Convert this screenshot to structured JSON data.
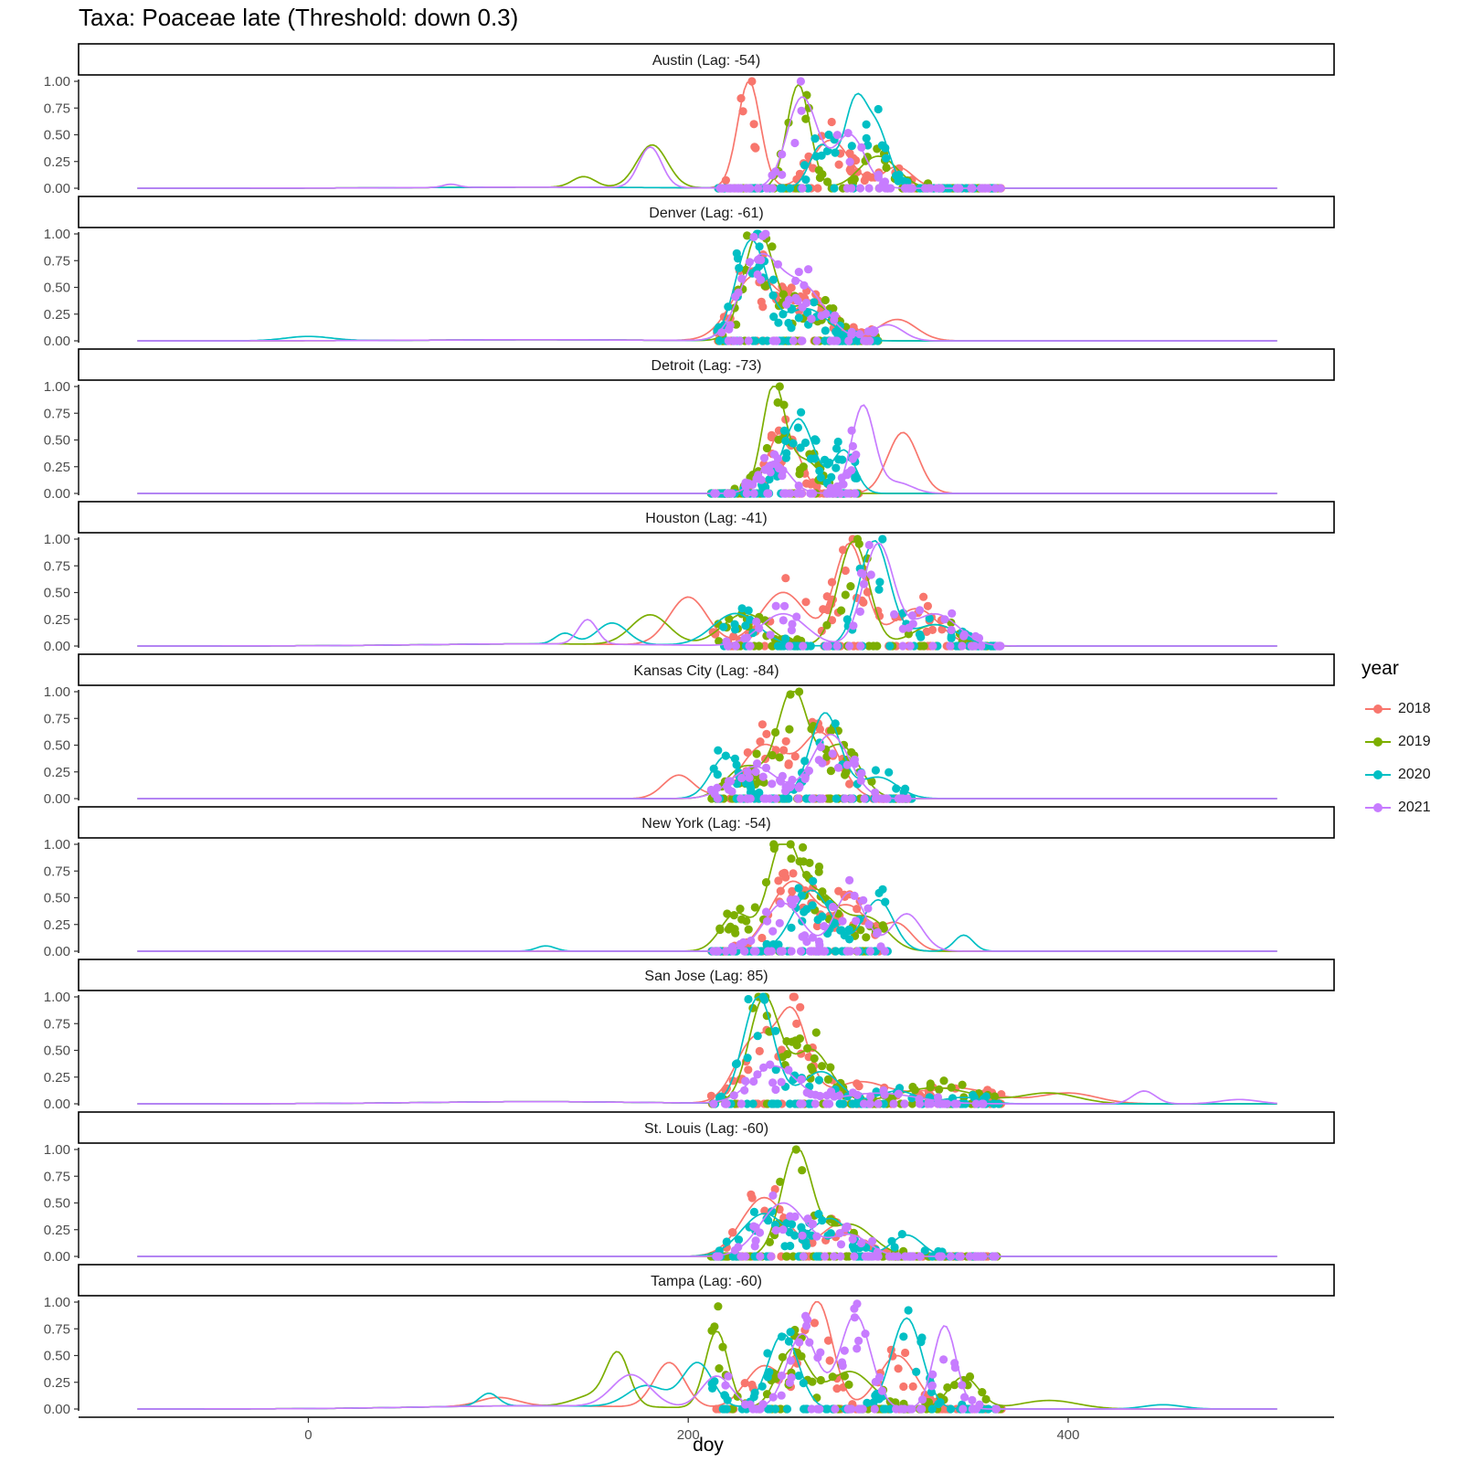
{
  "title": "Taxa: Poaceae late (Threshold: down 0.3)",
  "legend": {
    "title": "year",
    "items": [
      {
        "label": "2018",
        "color": "#F8766D"
      },
      {
        "label": "2019",
        "color": "#7CAE00"
      },
      {
        "label": "2020",
        "color": "#00BFC4"
      },
      {
        "label": "2021",
        "color": "#C77CFF"
      }
    ]
  },
  "chart_data": {
    "type": "line",
    "title": "Taxa: Poaceae late (Threshold: down 0.3)",
    "xlabel": "doy",
    "ylabel": "",
    "xlim": [
      -120,
      540
    ],
    "ylim": [
      0,
      1
    ],
    "x_ticks": [
      "0",
      "200",
      "400"
    ],
    "x_tick_values": [
      0,
      200,
      400
    ],
    "y_ticks": [
      "0.00",
      "0.25",
      "0.50",
      "0.75",
      "1.00"
    ],
    "y_tick_values": [
      0,
      0.25,
      0.5,
      0.75,
      1
    ],
    "facets": [
      {
        "title": "Austin (Lag: -54)",
        "point_range": [
          215,
          365
        ],
        "tail": 0.01,
        "series": [
          {
            "name": "2018",
            "peaks": [
              [
                232,
                1.0,
                6
              ],
              [
                275,
                0.45,
                10
              ],
              [
                310,
                0.2,
                8
              ]
            ]
          },
          {
            "name": "2019",
            "peaks": [
              [
                145,
                0.1,
                6
              ],
              [
                181,
                0.4,
                8
              ],
              [
                258,
                0.97,
                6
              ],
              [
                300,
                0.3,
                10
              ]
            ]
          },
          {
            "name": "2020",
            "peaks": [
              [
                270,
                0.4,
                6
              ],
              [
                288,
                0.8,
                6
              ],
              [
                300,
                0.5,
                6
              ]
            ]
          },
          {
            "name": "2021",
            "peaks": [
              [
                75,
                0.03,
                4
              ],
              [
                180,
                0.38,
                6
              ],
              [
                260,
                0.85,
                8
              ],
              [
                285,
                0.5,
                8
              ]
            ]
          }
        ]
      },
      {
        "title": "Denver (Lag: -61)",
        "point_range": [
          215,
          300
        ],
        "tail": 0.01,
        "series": [
          {
            "name": "2018",
            "peaks": [
              [
                235,
                0.6,
                12
              ],
              [
                265,
                0.35,
                12
              ],
              [
                310,
                0.2,
                10
              ]
            ]
          },
          {
            "name": "2019",
            "peaks": [
              [
                237,
                1.0,
                8
              ],
              [
                265,
                0.35,
                12
              ]
            ]
          },
          {
            "name": "2020",
            "peaks": [
              [
                0,
                0.04,
                12
              ],
              [
                233,
                0.93,
                8
              ],
              [
                262,
                0.3,
                12
              ]
            ]
          },
          {
            "name": "2021",
            "peaks": [
              [
                237,
                0.72,
                10
              ],
              [
                260,
                0.5,
                12
              ],
              [
                305,
                0.15,
                8
              ]
            ]
          }
        ]
      },
      {
        "title": "Detroit (Lag: -73)",
        "point_range": [
          212,
          290
        ],
        "tail": 0.0,
        "series": [
          {
            "name": "2018",
            "peaks": [
              [
                250,
                0.6,
                8
              ],
              [
                313,
                0.57,
                8
              ]
            ]
          },
          {
            "name": "2019",
            "peaks": [
              [
                245,
                1.0,
                6
              ],
              [
                262,
                0.3,
                8
              ]
            ]
          },
          {
            "name": "2020",
            "peaks": [
              [
                258,
                0.7,
                8
              ],
              [
                282,
                0.4,
                6
              ]
            ]
          },
          {
            "name": "2021",
            "peaks": [
              [
                245,
                0.3,
                8
              ],
              [
                292,
                0.82,
                6
              ],
              [
                310,
                0.1,
                8
              ]
            ]
          }
        ]
      },
      {
        "title": "Houston (Lag: -41)",
        "point_range": [
          212,
          365
        ],
        "tail": 0.02,
        "series": [
          {
            "name": "2018",
            "peaks": [
              [
                200,
                0.45,
                10
              ],
              [
                250,
                0.5,
                12
              ],
              [
                285,
                0.95,
                8
              ],
              [
                320,
                0.35,
                12
              ]
            ]
          },
          {
            "name": "2019",
            "peaks": [
              [
                180,
                0.28,
                10
              ],
              [
                230,
                0.3,
                12
              ],
              [
                287,
                0.98,
                8
              ],
              [
                330,
                0.2,
                12
              ]
            ]
          },
          {
            "name": "2020",
            "peaks": [
              [
                135,
                0.1,
                5
              ],
              [
                160,
                0.2,
                8
              ],
              [
                225,
                0.3,
                12
              ],
              [
                298,
                0.98,
                8
              ],
              [
                330,
                0.2,
                12
              ]
            ]
          },
          {
            "name": "2021",
            "peaks": [
              [
                147,
                0.23,
                5
              ],
              [
                250,
                0.3,
                12
              ],
              [
                300,
                0.95,
                8
              ],
              [
                330,
                0.3,
                12
              ]
            ]
          }
        ]
      },
      {
        "title": "Kansas City (Lag: -84)",
        "point_range": [
          212,
          318
        ],
        "tail": 0.0,
        "series": [
          {
            "name": "2018",
            "peaks": [
              [
                195,
                0.22,
                8
              ],
              [
                240,
                0.5,
                12
              ],
              [
                270,
                0.6,
                10
              ]
            ]
          },
          {
            "name": "2019",
            "peaks": [
              [
                230,
                0.3,
                10
              ],
              [
                255,
                1.0,
                8
              ],
              [
                280,
                0.5,
                10
              ]
            ]
          },
          {
            "name": "2020",
            "peaks": [
              [
                220,
                0.4,
                8
              ],
              [
                272,
                0.8,
                8
              ],
              [
                300,
                0.2,
                10
              ]
            ]
          },
          {
            "name": "2021",
            "peaks": [
              [
                235,
                0.3,
                12
              ],
              [
                275,
                0.6,
                10
              ]
            ]
          }
        ]
      },
      {
        "title": "New York (Lag: -54)",
        "point_range": [
          212,
          305
        ],
        "tail": 0.0,
        "series": [
          {
            "name": "2018",
            "peaks": [
              [
                255,
                0.65,
                12
              ],
              [
                285,
                0.4,
                10
              ],
              [
                310,
                0.25,
                8
              ]
            ]
          },
          {
            "name": "2019",
            "peaks": [
              [
                225,
                0.35,
                8
              ],
              [
                250,
                1.0,
                8
              ],
              [
                270,
                0.5,
                10
              ],
              [
                295,
                0.3,
                10
              ]
            ]
          },
          {
            "name": "2020",
            "peaks": [
              [
                125,
                0.05,
                5
              ],
              [
                265,
                0.57,
                10
              ],
              [
                300,
                0.48,
                8
              ],
              [
                345,
                0.15,
                5
              ]
            ]
          },
          {
            "name": "2021",
            "peaks": [
              [
                250,
                0.45,
                10
              ],
              [
                285,
                0.55,
                8
              ],
              [
                315,
                0.35,
                8
              ]
            ]
          }
        ]
      },
      {
        "title": "San Jose (Lag: 85)",
        "point_range": [
          212,
          365
        ],
        "tail": 0.02,
        "series": [
          {
            "name": "2018",
            "peaks": [
              [
                235,
                0.6,
                10
              ],
              [
                255,
                0.8,
                8
              ],
              [
                290,
                0.2,
                15
              ],
              [
                340,
                0.15,
                20
              ],
              [
                400,
                0.1,
                15
              ]
            ]
          },
          {
            "name": "2019",
            "peaks": [
              [
                240,
                0.98,
                8
              ],
              [
                265,
                0.5,
                10
              ],
              [
                330,
                0.15,
                20
              ],
              [
                390,
                0.1,
                15
              ]
            ]
          },
          {
            "name": "2020",
            "peaks": [
              [
                237,
                1.0,
                8
              ],
              [
                270,
                0.3,
                10
              ],
              [
                310,
                0.12,
                10
              ],
              [
                345,
                0.06,
                10
              ]
            ]
          },
          {
            "name": "2021",
            "peaks": [
              [
                245,
                0.35,
                12
              ],
              [
                300,
                0.1,
                20
              ],
              [
                440,
                0.12,
                6
              ],
              [
                490,
                0.04,
                10
              ]
            ]
          }
        ]
      },
      {
        "title": "St. Louis (Lag: -60)",
        "point_range": [
          212,
          365
        ],
        "tail": 0.0,
        "series": [
          {
            "name": "2018",
            "peaks": [
              [
                240,
                0.55,
                12
              ],
              [
                280,
                0.3,
                10
              ]
            ]
          },
          {
            "name": "2019",
            "peaks": [
              [
                257,
                1.0,
                8
              ],
              [
                285,
                0.3,
                12
              ]
            ]
          },
          {
            "name": "2020",
            "peaks": [
              [
                240,
                0.4,
                12
              ],
              [
                275,
                0.35,
                10
              ],
              [
                315,
                0.2,
                8
              ]
            ]
          },
          {
            "name": "2021",
            "peaks": [
              [
                250,
                0.5,
                12
              ],
              [
                285,
                0.2,
                10
              ]
            ]
          }
        ]
      },
      {
        "title": "Tampa (Lag: -60)",
        "point_range": [
          212,
          365
        ],
        "tail": 0.03,
        "series": [
          {
            "name": "2018",
            "peaks": [
              [
                100,
                0.08,
                10
              ],
              [
                190,
                0.42,
                8
              ],
              [
                240,
                0.4,
                10
              ],
              [
                268,
                1.0,
                8
              ],
              [
                310,
                0.5,
                10
              ]
            ]
          },
          {
            "name": "2019",
            "peaks": [
              [
                150,
                0.1,
                10
              ],
              [
                163,
                0.47,
                6
              ],
              [
                215,
                0.72,
                6
              ],
              [
                255,
                0.55,
                8
              ],
              [
                285,
                0.35,
                12
              ],
              [
                345,
                0.3,
                8
              ],
              [
                390,
                0.08,
                15
              ]
            ]
          },
          {
            "name": "2020",
            "peaks": [
              [
                95,
                0.12,
                5
              ],
              [
                178,
                0.2,
                10
              ],
              [
                205,
                0.42,
                8
              ],
              [
                250,
                0.7,
                8
              ],
              [
                315,
                0.85,
                8
              ],
              [
                450,
                0.04,
                10
              ]
            ]
          },
          {
            "name": "2021",
            "peaks": [
              [
                170,
                0.3,
                10
              ],
              [
                215,
                0.3,
                8
              ],
              [
                260,
                0.7,
                8
              ],
              [
                288,
                0.88,
                8
              ],
              [
                335,
                0.78,
                6
              ]
            ]
          }
        ]
      }
    ]
  }
}
